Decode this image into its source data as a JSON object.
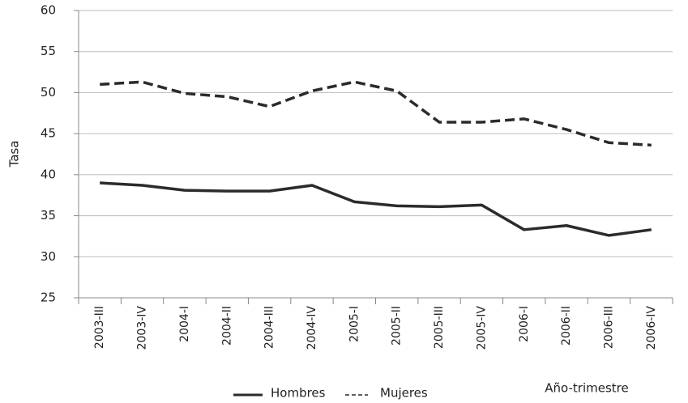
{
  "chart_data": {
    "type": "line",
    "x_label": "Año-trimestre",
    "y_label": "Tasa",
    "categories": [
      "2003-III",
      "2003-IV",
      "2004-I",
      "2004-II",
      "2004-III",
      "2004-IV",
      "2005-I",
      "2005-II",
      "2005-III",
      "2005-IV",
      "2006-I",
      "2006-II",
      "2006-III",
      "2006-IV"
    ],
    "series": [
      {
        "name": "Hombres",
        "color": "#2b2b2b",
        "dashed": false,
        "values": [
          39.0,
          38.7,
          38.1,
          38.0,
          38.0,
          38.7,
          36.7,
          36.2,
          36.1,
          36.3,
          33.3,
          33.8,
          32.6,
          33.3
        ]
      },
      {
        "name": "Mujeres",
        "color": "#2b2b2b",
        "dashed": true,
        "values": [
          51.0,
          51.3,
          49.9,
          49.5,
          48.3,
          50.2,
          51.3,
          50.2,
          46.4,
          46.4,
          46.8,
          45.5,
          43.9,
          43.6
        ]
      }
    ],
    "ylim": [
      25,
      60
    ],
    "yticks": [
      25,
      30,
      35,
      40,
      45,
      50,
      55,
      60
    ],
    "grid": true
  }
}
